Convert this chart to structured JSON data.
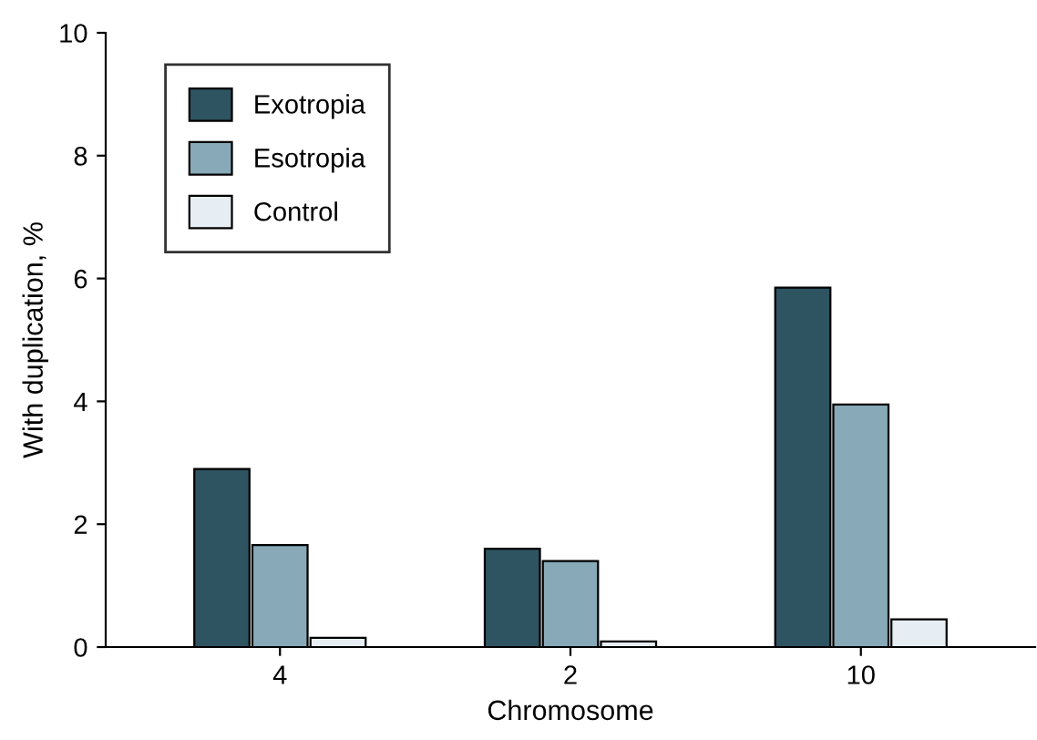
{
  "chart_data": {
    "type": "bar",
    "xlabel": "Chromosome",
    "ylabel": "With duplication, %",
    "categories": [
      "4",
      "2",
      "10"
    ],
    "series": [
      {
        "name": "Exotropia",
        "color": "#2e5361",
        "values": [
          2.9,
          1.6,
          5.85
        ]
      },
      {
        "name": "Esotropia",
        "color": "#87a9b8",
        "values": [
          1.66,
          1.4,
          3.95
        ]
      },
      {
        "name": "Control",
        "color": "#e6eef3",
        "values": [
          0.15,
          0.09,
          0.45
        ]
      }
    ],
    "ylim": [
      0,
      10
    ],
    "yticks": [
      0,
      2,
      4,
      6,
      8,
      10
    ],
    "grid": false,
    "legend": "top left"
  }
}
